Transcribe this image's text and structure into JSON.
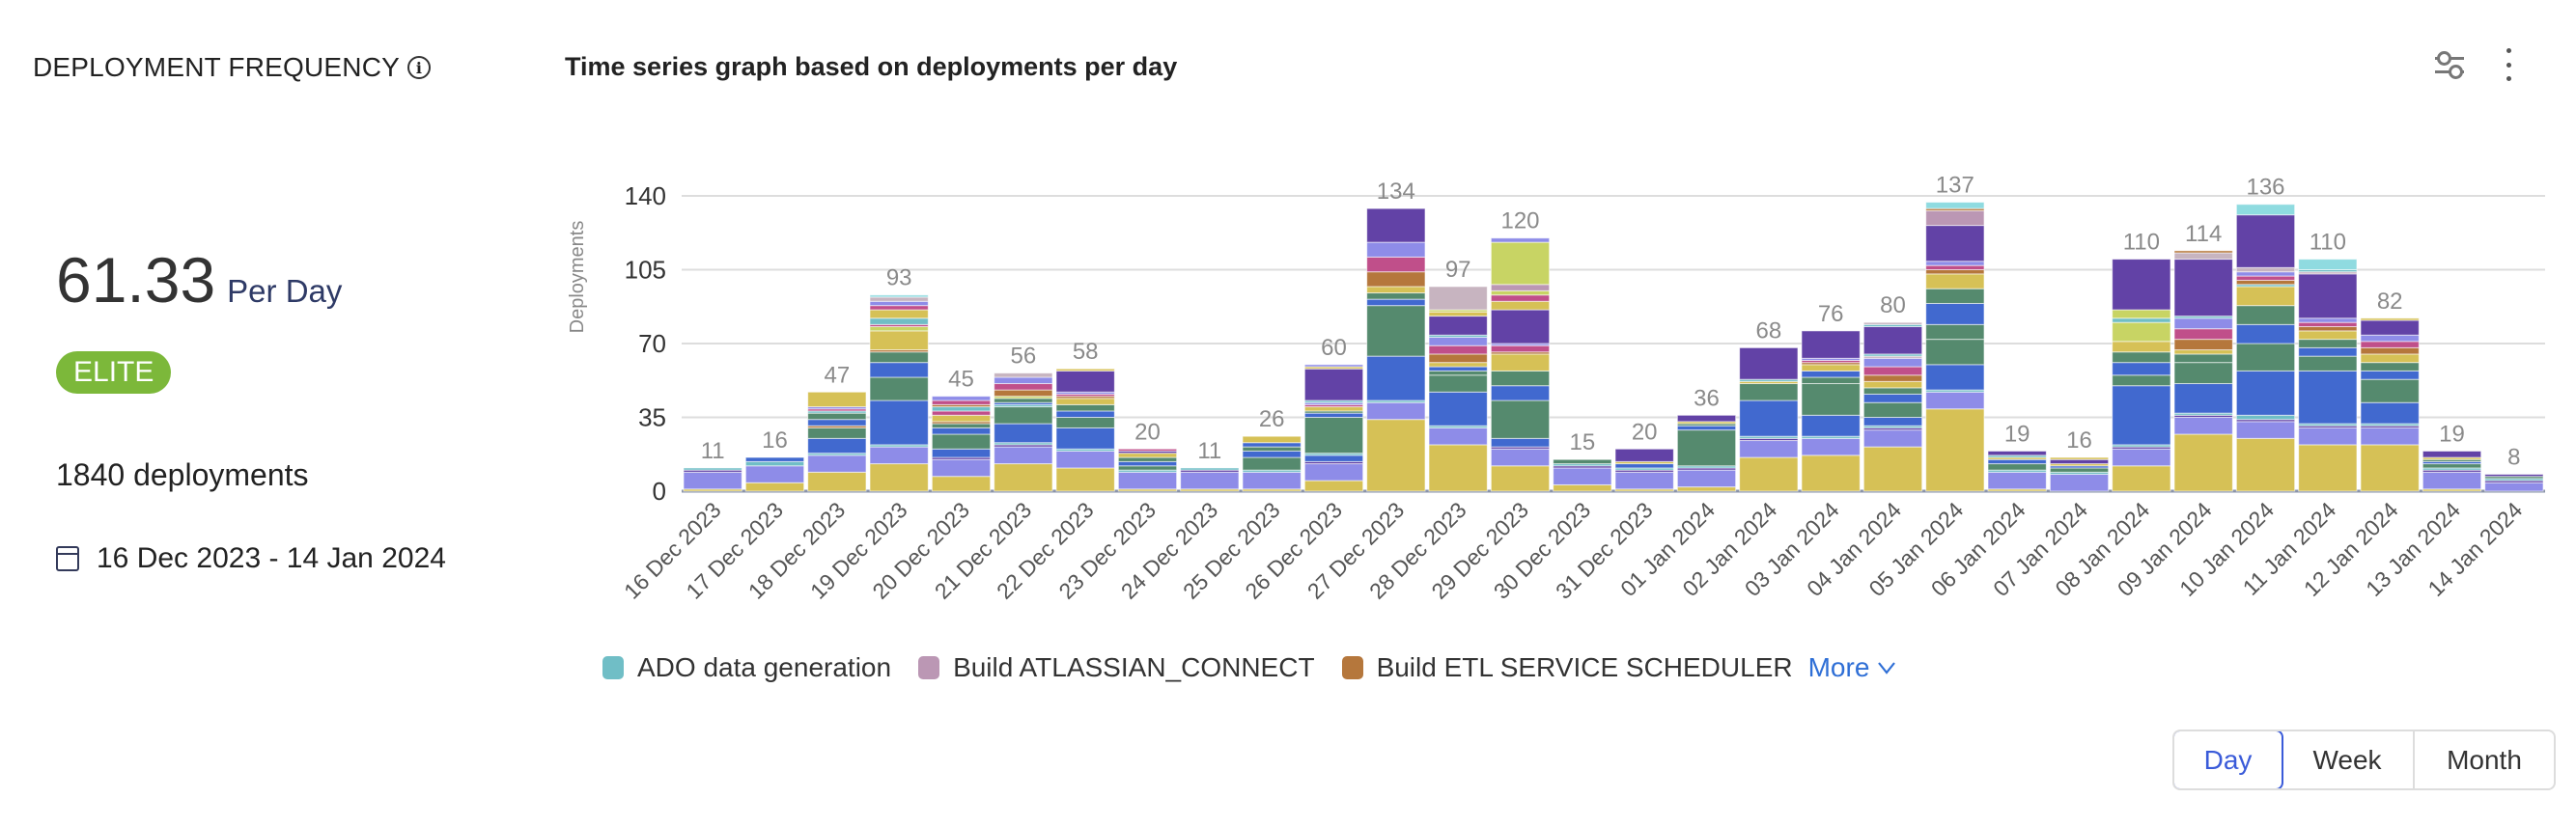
{
  "metric": {
    "title": "DEPLOYMENT FREQUENCY",
    "info_icon": "info-icon",
    "value": "61.33",
    "unit": "Per Day",
    "badge": "ELITE",
    "badge_color": "#7cb83a",
    "count": "1840 deployments",
    "date_range": "16 Dec 2023 - 14 Jan 2024"
  },
  "chart_header": {
    "title": "Time series graph based on deployments per day",
    "icons": [
      "sliders-icon",
      "kebab-menu-icon"
    ]
  },
  "legend": {
    "items": [
      {
        "name": "ADO data generation",
        "series": "T",
        "color": "#70bec6"
      },
      {
        "name": "Build ATLASSIAN_CONNECT",
        "series": "M",
        "color": "#bb97b4"
      },
      {
        "name": "Build ETL SERVICE SCHEDULER",
        "series": "R",
        "color": "#b5773c"
      }
    ],
    "more_label": "More"
  },
  "granularity": {
    "options": [
      "Day",
      "Week",
      "Month"
    ],
    "selected": "Day"
  },
  "chart_data": {
    "type": "bar",
    "stacked": true,
    "ylabel": "Deployments",
    "ylim": [
      0,
      140
    ],
    "yticks": [
      0,
      35,
      70,
      105,
      140
    ],
    "grid": true,
    "legend_position": "bottom",
    "categories": [
      "16 Dec 2023",
      "17 Dec 2023",
      "18 Dec 2023",
      "19 Dec 2023",
      "20 Dec 2023",
      "21 Dec 2023",
      "22 Dec 2023",
      "23 Dec 2023",
      "24 Dec 2023",
      "25 Dec 2023",
      "26 Dec 2023",
      "27 Dec 2023",
      "28 Dec 2023",
      "29 Dec 2023",
      "30 Dec 2023",
      "31 Dec 2023",
      "01 Jan 2024",
      "02 Jan 2024",
      "03 Jan 2024",
      "04 Jan 2024",
      "05 Jan 2024",
      "06 Jan 2024",
      "07 Jan 2024",
      "08 Jan 2024",
      "09 Jan 2024",
      "10 Jan 2024",
      "11 Jan 2024",
      "12 Jan 2024",
      "13 Jan 2024",
      "14 Jan 2024"
    ],
    "totals": [
      11,
      16,
      47,
      93,
      45,
      56,
      58,
      20,
      11,
      26,
      60,
      134,
      97,
      120,
      15,
      20,
      36,
      68,
      76,
      80,
      137,
      19,
      16,
      110,
      114,
      136,
      110,
      82,
      19,
      8
    ],
    "series": [
      {
        "id": "Y",
        "color": "#d6c156"
      },
      {
        "id": "L",
        "color": "#8e8ce8"
      },
      {
        "id": "T",
        "name": "ADO data generation",
        "color": "#70bec6"
      },
      {
        "id": "B",
        "color": "#4169cf"
      },
      {
        "id": "G",
        "color": "#558a6e"
      },
      {
        "id": "P",
        "color": "#6242a6"
      },
      {
        "id": "M",
        "name": "Build ATLASSIAN_CONNECT",
        "color": "#bb97b4"
      },
      {
        "id": "R",
        "name": "Build ETL SERVICE SCHEDULER",
        "color": "#b5773c"
      },
      {
        "id": "K",
        "color": "#c04f8a"
      },
      {
        "id": "N",
        "color": "#c8d464"
      },
      {
        "id": "C",
        "color": "#8fdbe0"
      },
      {
        "id": "S",
        "color": "#c7b4c0"
      }
    ],
    "stacks": [
      [
        [
          "Y",
          1
        ],
        [
          "L",
          8
        ],
        [
          "P",
          1
        ],
        [
          "T",
          1
        ]
      ],
      [
        [
          "Y",
          4
        ],
        [
          "L",
          8
        ],
        [
          "T",
          2
        ],
        [
          "B",
          2
        ]
      ],
      [
        [
          "Y",
          9
        ],
        [
          "L",
          8
        ],
        [
          "T",
          1
        ],
        [
          "B",
          7
        ],
        [
          "G",
          5
        ],
        [
          "R",
          1
        ],
        [
          "B",
          3
        ],
        [
          "G",
          3
        ],
        [
          "T",
          1
        ],
        [
          "K",
          1
        ],
        [
          "L",
          1
        ],
        [
          "Y",
          7
        ]
      ],
      [
        [
          "Y",
          13
        ],
        [
          "L",
          8
        ],
        [
          "T",
          1
        ],
        [
          "B",
          21
        ],
        [
          "G",
          11
        ],
        [
          "B",
          7
        ],
        [
          "G",
          5
        ],
        [
          "R",
          1
        ],
        [
          "Y",
          9
        ],
        [
          "N",
          2
        ],
        [
          "K",
          1
        ],
        [
          "T",
          3
        ],
        [
          "Y",
          4
        ],
        [
          "K",
          2
        ],
        [
          "L",
          2
        ],
        [
          "S",
          2
        ],
        [
          "C",
          1
        ]
      ],
      [
        [
          "Y",
          7
        ],
        [
          "L",
          8
        ],
        [
          "P",
          1
        ],
        [
          "B",
          4
        ],
        [
          "G",
          7
        ],
        [
          "B",
          3
        ],
        [
          "G",
          2
        ],
        [
          "R",
          1
        ],
        [
          "Y",
          3
        ],
        [
          "K",
          2
        ],
        [
          "T",
          2
        ],
        [
          "R",
          1
        ],
        [
          "K",
          2
        ],
        [
          "L",
          2
        ]
      ],
      [
        [
          "Y",
          13
        ],
        [
          "L",
          8
        ],
        [
          "P",
          1
        ],
        [
          "T",
          1
        ],
        [
          "B",
          9
        ],
        [
          "G",
          8
        ],
        [
          "T",
          1
        ],
        [
          "B",
          1
        ],
        [
          "G",
          2
        ],
        [
          "N",
          1
        ],
        [
          "R",
          3
        ],
        [
          "K",
          3
        ],
        [
          "L",
          3
        ],
        [
          "S",
          2
        ]
      ],
      [
        [
          "Y",
          11
        ],
        [
          "L",
          8
        ],
        [
          "T",
          1
        ],
        [
          "B",
          10
        ],
        [
          "G",
          5
        ],
        [
          "B",
          3
        ],
        [
          "G",
          3
        ],
        [
          "Y",
          3
        ],
        [
          "R",
          1
        ],
        [
          "K",
          1
        ],
        [
          "L",
          1
        ],
        [
          "P",
          10
        ],
        [
          "Y",
          1
        ]
      ],
      [
        [
          "Y",
          1
        ],
        [
          "L",
          8
        ],
        [
          "T",
          1
        ],
        [
          "G",
          2
        ],
        [
          "B",
          2
        ],
        [
          "G",
          2
        ],
        [
          "Y",
          2
        ],
        [
          "P",
          1
        ],
        [
          "K",
          1
        ]
      ],
      [
        [
          "Y",
          1
        ],
        [
          "L",
          8
        ],
        [
          "P",
          1
        ],
        [
          "T",
          1
        ]
      ],
      [
        [
          "Y",
          1
        ],
        [
          "L",
          8
        ],
        [
          "T",
          1
        ],
        [
          "G",
          6
        ],
        [
          "B",
          3
        ],
        [
          "G",
          2
        ],
        [
          "B",
          2
        ],
        [
          "Y",
          3
        ]
      ],
      [
        [
          "Y",
          5
        ],
        [
          "L",
          8
        ],
        [
          "P",
          1
        ],
        [
          "B",
          3
        ],
        [
          "T",
          1
        ],
        [
          "G",
          17
        ],
        [
          "B",
          2
        ],
        [
          "G",
          1
        ],
        [
          "Y",
          2
        ],
        [
          "K",
          1
        ],
        [
          "L",
          1
        ],
        [
          "T",
          1
        ],
        [
          "P",
          15
        ],
        [
          "Y",
          1
        ],
        [
          "L",
          1
        ]
      ],
      [
        [
          "Y",
          34
        ],
        [
          "L",
          8
        ],
        [
          "T",
          1
        ],
        [
          "B",
          21
        ],
        [
          "G",
          24
        ],
        [
          "B",
          3
        ],
        [
          "G",
          3
        ],
        [
          "Y",
          3
        ],
        [
          "R",
          7
        ],
        [
          "K",
          7
        ],
        [
          "L",
          7
        ],
        [
          "P",
          16
        ]
      ],
      [
        [
          "Y",
          22
        ],
        [
          "L",
          8
        ],
        [
          "T",
          1
        ],
        [
          "B",
          16
        ],
        [
          "G",
          8
        ],
        [
          "G",
          2
        ],
        [
          "B",
          2
        ],
        [
          "Y",
          2
        ],
        [
          "R",
          4
        ],
        [
          "K",
          4
        ],
        [
          "L",
          4
        ],
        [
          "T",
          1
        ],
        [
          "P",
          9
        ],
        [
          "Y",
          2
        ],
        [
          "N",
          1
        ],
        [
          "S",
          11
        ]
      ],
      [
        [
          "Y",
          12
        ],
        [
          "L",
          8
        ],
        [
          "P",
          1
        ],
        [
          "B",
          4
        ],
        [
          "G",
          18
        ],
        [
          "B",
          7
        ],
        [
          "G",
          7
        ],
        [
          "Y",
          8
        ],
        [
          "R",
          1
        ],
        [
          "K",
          3
        ],
        [
          "L",
          1
        ],
        [
          "P",
          16
        ],
        [
          "Y",
          4
        ],
        [
          "K",
          3
        ],
        [
          "N",
          2
        ],
        [
          "M",
          3
        ],
        [
          "N",
          20
        ],
        [
          "L",
          2
        ]
      ],
      [
        [
          "Y",
          3
        ],
        [
          "L",
          8
        ],
        [
          "P",
          1
        ],
        [
          "T",
          1
        ],
        [
          "G",
          2
        ]
      ],
      [
        [
          "Y",
          1
        ],
        [
          "L",
          8
        ],
        [
          "P",
          1
        ],
        [
          "T",
          1
        ],
        [
          "B",
          2
        ],
        [
          "Y",
          1
        ],
        [
          "P",
          6
        ]
      ],
      [
        [
          "Y",
          2
        ],
        [
          "L",
          8
        ],
        [
          "P",
          1
        ],
        [
          "T",
          1
        ],
        [
          "G",
          17
        ],
        [
          "B",
          2
        ],
        [
          "G",
          1
        ],
        [
          "Y",
          1
        ],
        [
          "P",
          3
        ]
      ],
      [
        [
          "Y",
          16
        ],
        [
          "L",
          8
        ],
        [
          "P",
          1
        ],
        [
          "T",
          1
        ],
        [
          "B",
          17
        ],
        [
          "G",
          8
        ],
        [
          "Y",
          1
        ],
        [
          "T",
          1
        ],
        [
          "P",
          15
        ]
      ],
      [
        [
          "Y",
          17
        ],
        [
          "L",
          8
        ],
        [
          "T",
          1
        ],
        [
          "B",
          10
        ],
        [
          "G",
          15
        ],
        [
          "G",
          3
        ],
        [
          "B",
          3
        ],
        [
          "Y",
          3
        ],
        [
          "R",
          1
        ],
        [
          "K",
          1
        ],
        [
          "L",
          1
        ],
        [
          "P",
          13
        ]
      ],
      [
        [
          "Y",
          21
        ],
        [
          "L",
          8
        ],
        [
          "P",
          1
        ],
        [
          "T",
          1
        ],
        [
          "B",
          4
        ],
        [
          "G",
          7
        ],
        [
          "B",
          4
        ],
        [
          "G",
          3
        ],
        [
          "Y",
          3
        ],
        [
          "R",
          3
        ],
        [
          "K",
          4
        ],
        [
          "L",
          4
        ],
        [
          "S",
          1
        ],
        [
          "T",
          1
        ],
        [
          "P",
          13
        ],
        [
          "T",
          1
        ],
        [
          "S",
          1
        ]
      ],
      [
        [
          "Y",
          39
        ],
        [
          "L",
          8
        ],
        [
          "T",
          1
        ],
        [
          "B",
          12
        ],
        [
          "G",
          12
        ],
        [
          "G",
          7
        ],
        [
          "B",
          10
        ],
        [
          "G",
          7
        ],
        [
          "Y",
          7
        ],
        [
          "R",
          2
        ],
        [
          "K",
          2
        ],
        [
          "L",
          2
        ],
        [
          "P",
          17
        ],
        [
          "M",
          7
        ],
        [
          "R",
          1
        ],
        [
          "C",
          3
        ]
      ],
      [
        [
          "Y",
          1
        ],
        [
          "L",
          8
        ],
        [
          "T",
          1
        ],
        [
          "G",
          3
        ],
        [
          "B",
          2
        ],
        [
          "Y",
          1
        ],
        [
          "T",
          1
        ],
        [
          "P",
          2
        ]
      ],
      [
        [
          "L",
          8
        ],
        [
          "T",
          1
        ],
        [
          "G",
          2
        ],
        [
          "B",
          1
        ],
        [
          "Y",
          1
        ],
        [
          "P",
          2
        ],
        [
          "Y",
          1
        ]
      ],
      [
        [
          "Y",
          12
        ],
        [
          "L",
          8
        ],
        [
          "P",
          1
        ],
        [
          "T",
          1
        ],
        [
          "B",
          28
        ],
        [
          "G",
          5
        ],
        [
          "B",
          6
        ],
        [
          "G",
          5
        ],
        [
          "Y",
          5
        ],
        [
          "N",
          9
        ],
        [
          "T",
          2
        ],
        [
          "N",
          4
        ],
        [
          "P",
          24
        ]
      ],
      [
        [
          "Y",
          27
        ],
        [
          "L",
          8
        ],
        [
          "P",
          1
        ],
        [
          "T",
          1
        ],
        [
          "B",
          14
        ],
        [
          "G",
          10
        ],
        [
          "G",
          4
        ],
        [
          "Y",
          2
        ],
        [
          "R",
          5
        ],
        [
          "K",
          5
        ],
        [
          "L",
          5
        ],
        [
          "T",
          1
        ],
        [
          "P",
          27
        ],
        [
          "S",
          3
        ],
        [
          "R",
          1
        ]
      ],
      [
        [
          "Y",
          25
        ],
        [
          "L",
          8
        ],
        [
          "P",
          1
        ],
        [
          "T",
          2
        ],
        [
          "B",
          21
        ],
        [
          "G",
          13
        ],
        [
          "B",
          9
        ],
        [
          "G",
          9
        ],
        [
          "Y",
          9
        ],
        [
          "T",
          1
        ],
        [
          "R",
          2
        ],
        [
          "K",
          2
        ],
        [
          "L",
          2
        ],
        [
          "S",
          2
        ],
        [
          "P",
          25
        ],
        [
          "C",
          5
        ]
      ],
      [
        [
          "Y",
          22
        ],
        [
          "L",
          8
        ],
        [
          "P",
          1
        ],
        [
          "T",
          1
        ],
        [
          "B",
          25
        ],
        [
          "G",
          7
        ],
        [
          "B",
          4
        ],
        [
          "G",
          4
        ],
        [
          "Y",
          4
        ],
        [
          "R",
          2
        ],
        [
          "K",
          2
        ],
        [
          "L",
          2
        ],
        [
          "P",
          21
        ],
        [
          "S",
          1
        ],
        [
          "T",
          1
        ],
        [
          "C",
          5
        ]
      ],
      [
        [
          "Y",
          22
        ],
        [
          "L",
          8
        ],
        [
          "P",
          1
        ],
        [
          "T",
          1
        ],
        [
          "B",
          10
        ],
        [
          "G",
          11
        ],
        [
          "B",
          4
        ],
        [
          "G",
          4
        ],
        [
          "Y",
          4
        ],
        [
          "R",
          3
        ],
        [
          "K",
          3
        ],
        [
          "L",
          3
        ],
        [
          "P",
          7
        ],
        [
          "Y",
          1
        ]
      ],
      [
        [
          "Y",
          1
        ],
        [
          "L",
          8
        ],
        [
          "P",
          1
        ],
        [
          "T",
          1
        ],
        [
          "G",
          2
        ],
        [
          "B",
          1
        ],
        [
          "G",
          1
        ],
        [
          "Y",
          1
        ],
        [
          "P",
          3
        ]
      ],
      [
        [
          "L",
          4
        ],
        [
          "P",
          1
        ],
        [
          "T",
          1
        ],
        [
          "G",
          1
        ],
        [
          "P",
          1
        ]
      ]
    ]
  }
}
